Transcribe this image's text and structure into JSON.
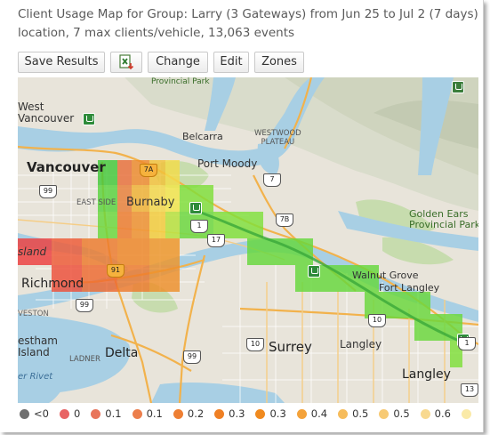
{
  "header": {
    "title_line1": "Client Usage Map for Group: Larry (3 Gateways) from Jun 25 to Jul 2 (7 days)",
    "title_line2": "location, 7 max clients/vehicle, 13,063 events"
  },
  "toolbar": {
    "save_label": "Save Results",
    "excel_icon": "excel-export-icon",
    "change_label": "Change",
    "edit_label": "Edit",
    "zones_label": "Zones"
  },
  "map": {
    "places": {
      "vancouver": "Vancouver",
      "west_vancouver": "West\nVancouver",
      "burnaby": "Burnaby",
      "belcarra": "Belcarra",
      "port_moody": "Port Moody",
      "westwood_plateau": "WESTWOOD\nPLATEAU",
      "richmond": "Richmond",
      "island": "sland",
      "delta": "Delta",
      "surrey": "Surrey",
      "langley_city": "Langley",
      "langley": "Langley",
      "walnut_grove": "Walnut Grove",
      "fort_langley": "Fort Langley",
      "golden_ears": "Golden Ears\nProvincial Park",
      "westham": "estham\nIsland",
      "east_side": "EAST SIDE",
      "ladner": "LADNER",
      "westminster_hwy": "VESTON",
      "provincial_park": "Provincial Park",
      "er_rivet": "er Rivet"
    },
    "shields": [
      "99",
      "7A",
      "7",
      "7B",
      "1",
      "17",
      "91",
      "99",
      "10",
      "10",
      "99",
      "13",
      "1"
    ]
  },
  "legend": [
    {
      "label": "<0",
      "color": "#6f6f6f"
    },
    {
      "label": "0",
      "color": "#e86464"
    },
    {
      "label": "0.1",
      "color": "#e8755b"
    },
    {
      "label": "0.1",
      "color": "#ec7f4c"
    },
    {
      "label": "0.2",
      "color": "#ee7f33"
    },
    {
      "label": "0.3",
      "color": "#ef8024"
    },
    {
      "label": "0.3",
      "color": "#f08a1f"
    },
    {
      "label": "0.4",
      "color": "#f4a23a"
    },
    {
      "label": "0.5",
      "color": "#f6bc5c"
    },
    {
      "label": "0.5",
      "color": "#f7ca75"
    },
    {
      "label": "0.6",
      "color": "#f8d990"
    },
    {
      "label": "",
      "color": "#faeaa8"
    }
  ]
}
